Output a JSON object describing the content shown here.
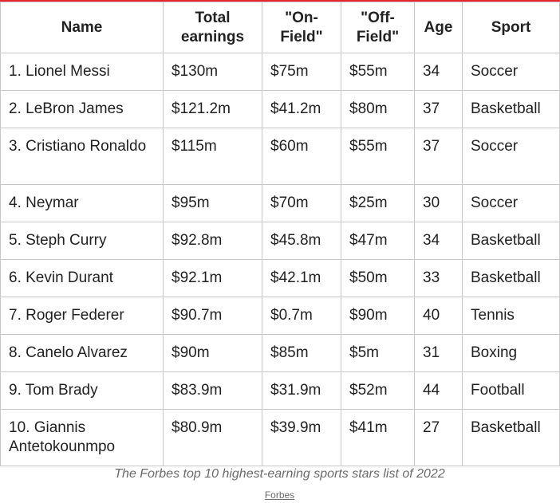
{
  "table": {
    "headers": {
      "name": "Name",
      "total": "Total earnings",
      "on_field": "\"On-Field\"",
      "off_field": "\"Off-Field\"",
      "age": "Age",
      "sport": "Sport"
    },
    "rows": [
      {
        "name": "1. Lionel Messi",
        "total": "$130m",
        "on_field": "$75m",
        "off_field": "$55m",
        "age": "34",
        "sport": "Soccer"
      },
      {
        "name": "2. LeBron James",
        "total": "$121.2m",
        "on_field": "$41.2m",
        "off_field": "$80m",
        "age": "37",
        "sport": "Basketball"
      },
      {
        "name": "3. Cristiano Ronaldo",
        "total": "$115m",
        "on_field": "$60m",
        "off_field": "$55m",
        "age": "37",
        "sport": "Soccer"
      },
      {
        "name": "4. Neymar",
        "total": "$95m",
        "on_field": "$70m",
        "off_field": "$25m",
        "age": "30",
        "sport": "Soccer"
      },
      {
        "name": "5. Steph Curry",
        "total": "$92.8m",
        "on_field": "$45.8m",
        "off_field": "$47m",
        "age": "34",
        "sport": "Basketball"
      },
      {
        "name": "6. Kevin Durant",
        "total": "$92.1m",
        "on_field": "$42.1m",
        "off_field": "$50m",
        "age": "33",
        "sport": "Basketball"
      },
      {
        "name": "7. Roger Federer",
        "total": "$90.7m",
        "on_field": "$0.7m",
        "off_field": "$90m",
        "age": "40",
        "sport": "Tennis"
      },
      {
        "name": "8. Canelo Alvarez",
        "total": "$90m",
        "on_field": "$85m",
        "off_field": "$5m",
        "age": "31",
        "sport": "Boxing"
      },
      {
        "name": "9. Tom Brady",
        "total": "$83.9m",
        "on_field": "$31.9m",
        "off_field": "$52m",
        "age": "44",
        "sport": "Football"
      },
      {
        "name": "10. Giannis Antetokounmpo",
        "total": "$80.9m",
        "on_field": "$39.9m",
        "off_field": "$41m",
        "age": "27",
        "sport": "Basketball"
      }
    ]
  },
  "caption": "The Forbes top 10 highest-earning sports stars list of 2022",
  "source_link": "Forbes",
  "colors": {
    "accent_rule": "#e8232b",
    "border": "#c8c8c8",
    "caption_text": "#6b6b6b"
  }
}
